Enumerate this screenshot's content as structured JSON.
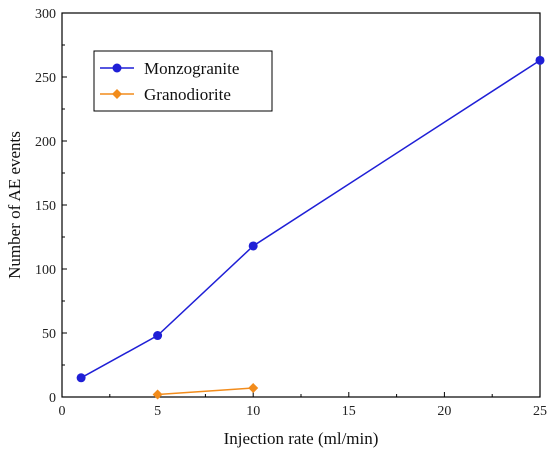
{
  "chart_data": {
    "type": "line",
    "xlabel": "Injection rate (ml/min)",
    "ylabel": "Number of AE events",
    "xlim": [
      0,
      25
    ],
    "ylim": [
      0,
      300
    ],
    "xticks": [
      0,
      5,
      10,
      15,
      20,
      25
    ],
    "yticks": [
      0,
      50,
      100,
      150,
      200,
      250,
      300
    ],
    "grid": false,
    "legend_position": "top-left",
    "series": [
      {
        "name": "Monzogranite",
        "color": "#1f1fd6",
        "marker": "circle",
        "x": [
          1,
          5,
          10,
          25
        ],
        "y": [
          15,
          48,
          118,
          263
        ]
      },
      {
        "name": "Granodiorite",
        "color": "#f28c1c",
        "marker": "diamond",
        "x": [
          5,
          10
        ],
        "y": [
          2,
          7
        ]
      }
    ]
  }
}
